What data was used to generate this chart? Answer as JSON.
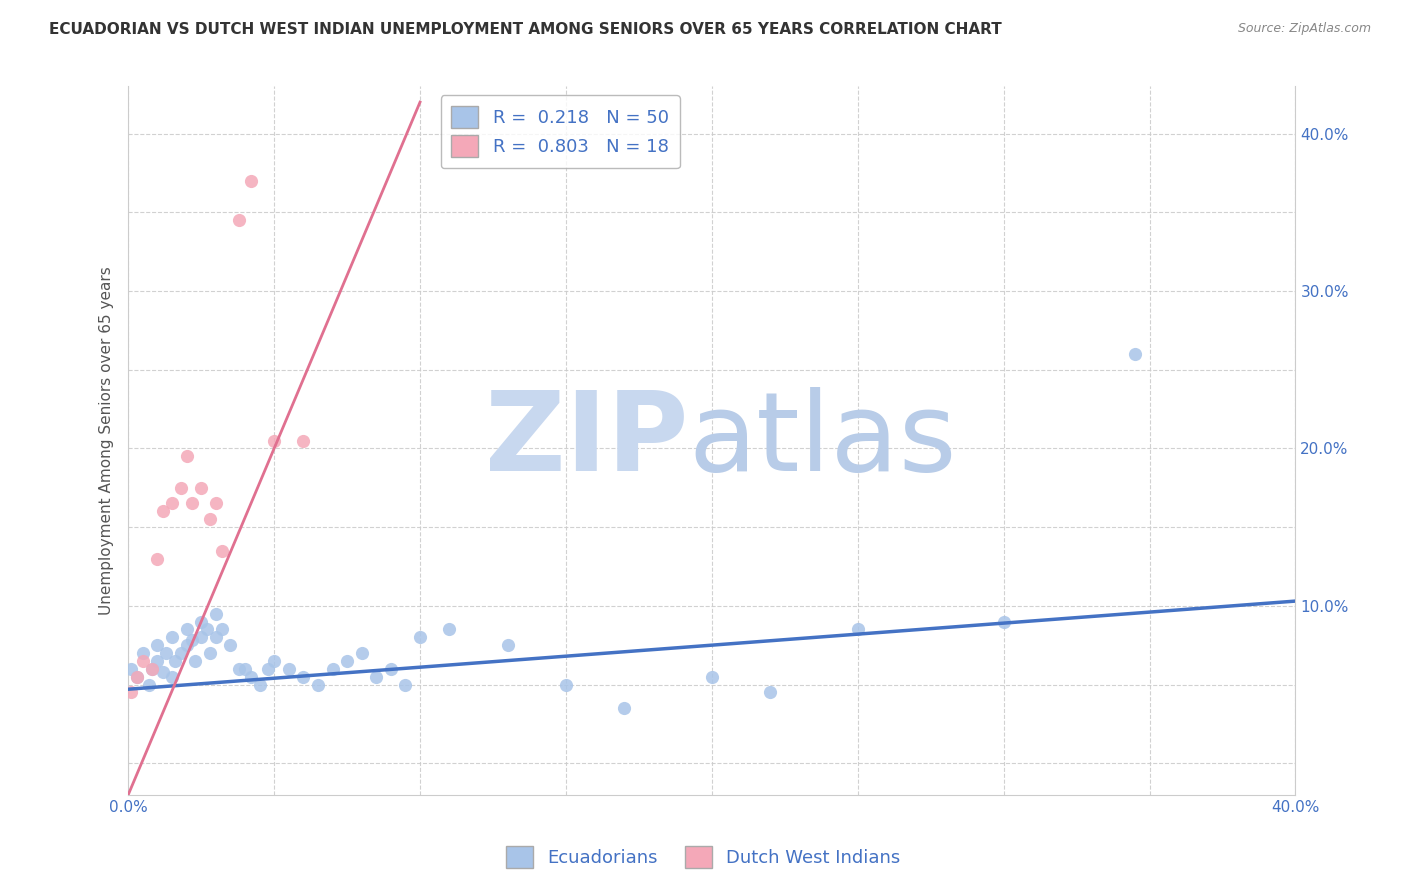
{
  "title": "ECUADORIAN VS DUTCH WEST INDIAN UNEMPLOYMENT AMONG SENIORS OVER 65 YEARS CORRELATION CHART",
  "source": "Source: ZipAtlas.com",
  "ylabel": "Unemployment Among Seniors over 65 years",
  "xlim": [
    0.0,
    0.4
  ],
  "ylim": [
    -0.02,
    0.43
  ],
  "background_color": "#ffffff",
  "grid_color": "#cccccc",
  "blue_color": "#a8c4e8",
  "pink_color": "#f4a8b8",
  "blue_line_color": "#4472c4",
  "pink_line_color": "#e07090",
  "legend_text_color": "#4472c4",
  "tick_color": "#4472c4",
  "legend_blue_label": "R =  0.218   N = 50",
  "legend_pink_label": "R =  0.803   N = 18",
  "blue_line_x0": 0.0,
  "blue_line_x1": 0.4,
  "blue_line_y0": 0.047,
  "blue_line_y1": 0.103,
  "pink_line_x0": 0.0,
  "pink_line_x1": 0.1,
  "pink_line_y0": -0.02,
  "pink_line_y1": 0.42,
  "ecuadorian_x": [
    0.001,
    0.003,
    0.005,
    0.007,
    0.008,
    0.01,
    0.01,
    0.012,
    0.013,
    0.015,
    0.015,
    0.016,
    0.018,
    0.02,
    0.02,
    0.022,
    0.023,
    0.025,
    0.025,
    0.027,
    0.028,
    0.03,
    0.03,
    0.032,
    0.035,
    0.038,
    0.04,
    0.042,
    0.045,
    0.048,
    0.05,
    0.055,
    0.06,
    0.065,
    0.07,
    0.075,
    0.08,
    0.085,
    0.09,
    0.095,
    0.1,
    0.11,
    0.13,
    0.15,
    0.17,
    0.2,
    0.22,
    0.25,
    0.3,
    0.345
  ],
  "ecuadorian_y": [
    0.06,
    0.055,
    0.07,
    0.05,
    0.06,
    0.065,
    0.075,
    0.058,
    0.07,
    0.055,
    0.08,
    0.065,
    0.07,
    0.075,
    0.085,
    0.078,
    0.065,
    0.08,
    0.09,
    0.085,
    0.07,
    0.095,
    0.08,
    0.085,
    0.075,
    0.06,
    0.06,
    0.055,
    0.05,
    0.06,
    0.065,
    0.06,
    0.055,
    0.05,
    0.06,
    0.065,
    0.07,
    0.055,
    0.06,
    0.05,
    0.08,
    0.085,
    0.075,
    0.05,
    0.035,
    0.055,
    0.045,
    0.085,
    0.09,
    0.26
  ],
  "dutch_x": [
    0.001,
    0.003,
    0.005,
    0.008,
    0.01,
    0.012,
    0.015,
    0.018,
    0.02,
    0.022,
    0.025,
    0.028,
    0.03,
    0.032,
    0.038,
    0.042,
    0.05,
    0.06
  ],
  "dutch_y": [
    0.045,
    0.055,
    0.065,
    0.06,
    0.13,
    0.16,
    0.165,
    0.175,
    0.195,
    0.165,
    0.175,
    0.155,
    0.165,
    0.135,
    0.345,
    0.37,
    0.205,
    0.205
  ],
  "legend_fontsize": 13,
  "title_fontsize": 11,
  "axis_label_fontsize": 11,
  "tick_fontsize": 11,
  "watermark_zip_color": "#c8d8ef",
  "watermark_atlas_color": "#b8cce8"
}
